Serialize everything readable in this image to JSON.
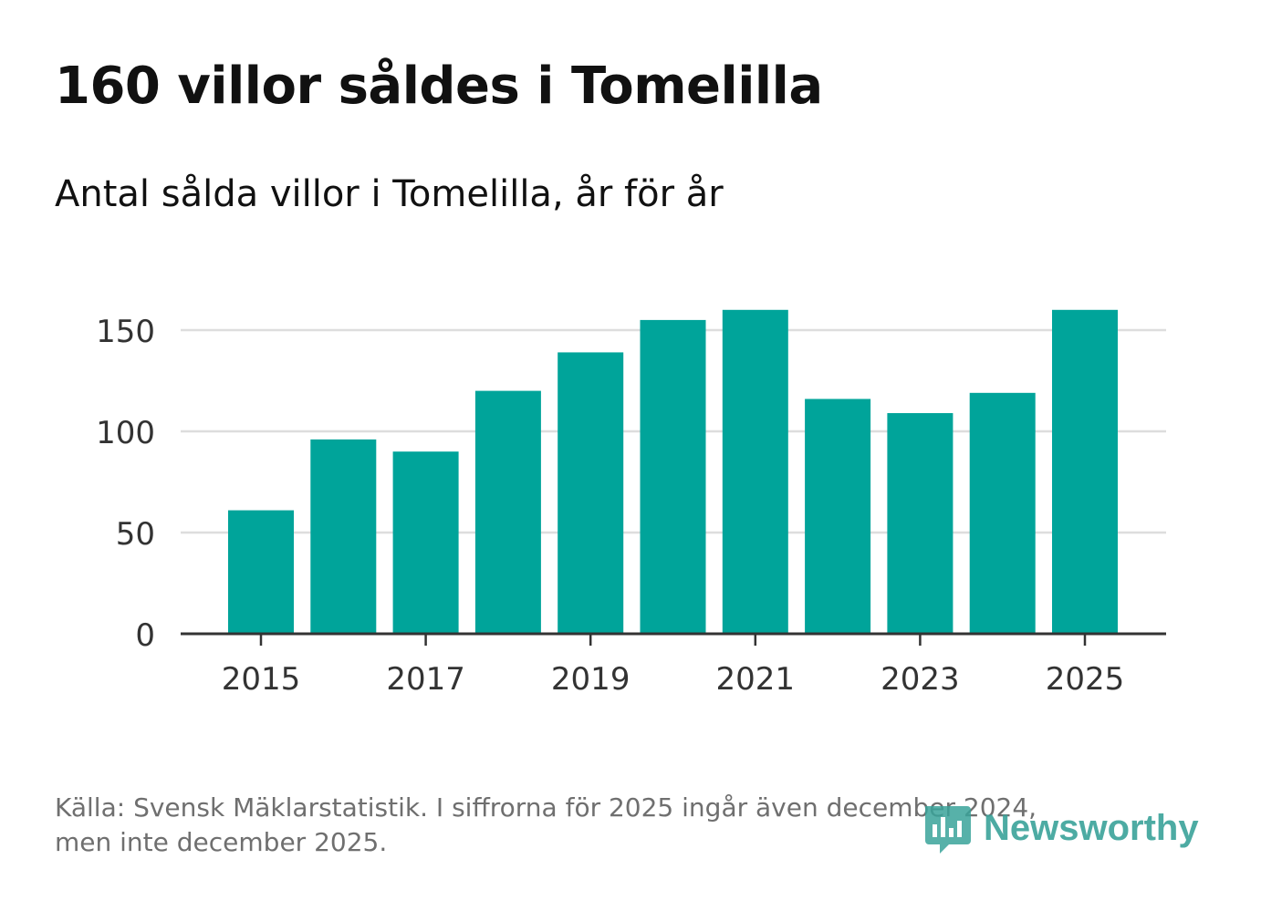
{
  "title": "160 villor såldes i Tomelilla",
  "subtitle": "Antal sålda villor i Tomelilla, år för år",
  "footer": {
    "line1": "Källa: Svensk Mäklarstatistik. I siffrorna för 2025 ingår även december 2024,",
    "line2": "men inte december 2025."
  },
  "brand": {
    "name": "Newsworthy",
    "icon": "newsworthy-logo-icon",
    "color": "#3aa39a"
  },
  "chart_data": {
    "type": "bar",
    "title": "Antal sålda villor i Tomelilla, år för år",
    "xlabel": "",
    "ylabel": "",
    "categories": [
      "2015",
      "2016",
      "2017",
      "2018",
      "2019",
      "2020",
      "2021",
      "2022",
      "2023",
      "2024",
      "2025"
    ],
    "values": [
      61,
      96,
      90,
      120,
      139,
      155,
      160,
      116,
      109,
      119,
      160
    ],
    "ylim": [
      0,
      170
    ],
    "yticks": [
      0,
      50,
      100,
      150
    ],
    "xtick_labels": [
      "2015",
      "2017",
      "2019",
      "2021",
      "2023",
      "2025"
    ],
    "grid": true,
    "bar_color": "#00a49a",
    "grid_color": "#dddddd",
    "axis_color": "#333333"
  }
}
